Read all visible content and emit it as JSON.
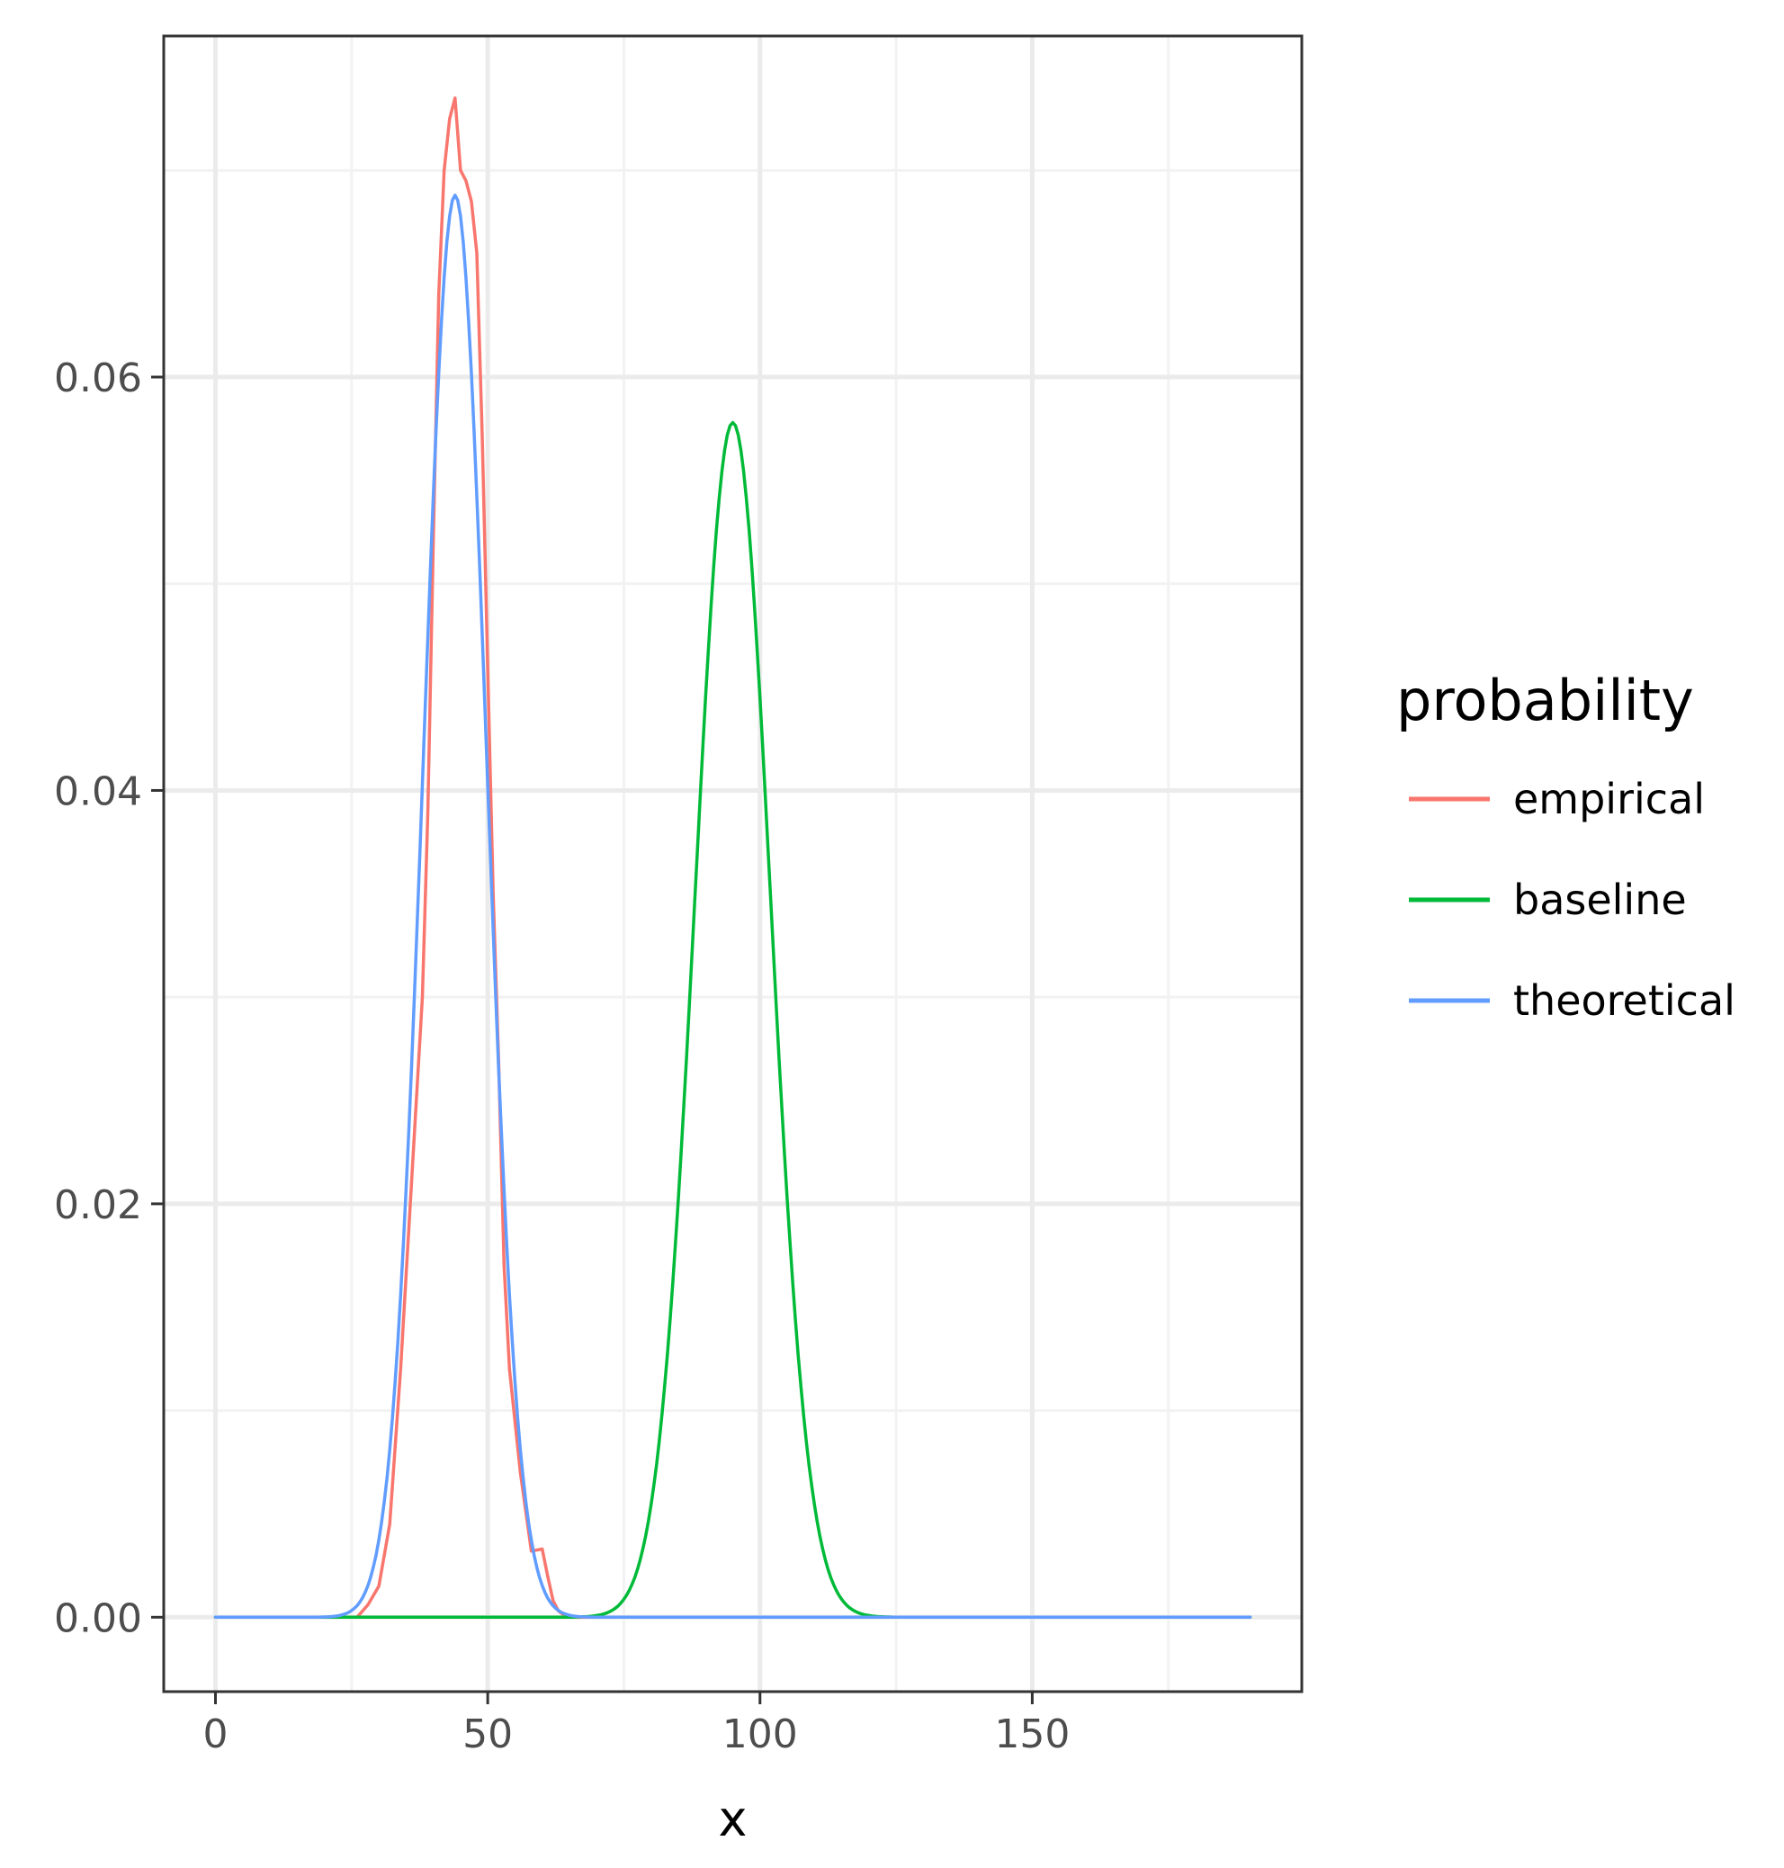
{
  "chart_data": {
    "type": "line",
    "title": "",
    "xlabel": "x",
    "ylabel": "",
    "xlim": [
      -9.5,
      199.5
    ],
    "ylim": [
      -0.0036,
      0.0765
    ],
    "x_ticks": [
      0,
      50,
      100,
      150
    ],
    "x_tick_labels": [
      "0",
      "50",
      "100",
      "150"
    ],
    "y_ticks": [
      0,
      0.02,
      0.04,
      0.06
    ],
    "y_tick_labels": [
      "0.00",
      "0.02",
      "0.04",
      "0.06"
    ],
    "x_minor_ticks": [
      25,
      75,
      125,
      175
    ],
    "y_minor_ticks": [
      0.01,
      0.03,
      0.05,
      0.07
    ],
    "grid": true,
    "legend": {
      "title": "probability",
      "position": "right"
    },
    "series": [
      {
        "name": "empirical",
        "color": "#F8766D",
        "x": [
          0,
          20,
          26,
          28,
          30,
          32,
          34,
          36,
          38,
          39,
          40,
          41,
          42,
          43,
          44,
          45,
          46,
          47,
          48,
          49,
          50,
          51,
          52,
          53,
          54,
          56,
          58,
          60,
          61,
          62,
          63,
          64,
          66,
          70,
          100,
          150,
          190
        ],
        "y": [
          0,
          0,
          0,
          0.0006,
          0.0015,
          0.0045,
          0.012,
          0.021,
          0.03,
          0.039,
          0.052,
          0.064,
          0.07,
          0.0725,
          0.0735,
          0.07,
          0.0695,
          0.0685,
          0.066,
          0.057,
          0.046,
          0.035,
          0.027,
          0.017,
          0.012,
          0.007,
          0.0032,
          0.0033,
          0.002,
          0.0008,
          0.0003,
          0.0001,
          0,
          0,
          0,
          0,
          0
        ]
      },
      {
        "name": "baseline",
        "color": "#00BA38",
        "gauss": {
          "mu": 95,
          "sigma": 6.9,
          "peak": 0.0578,
          "from": 0,
          "to": 190
        }
      },
      {
        "name": "theoretical",
        "color": "#619CFF",
        "gauss": {
          "mu": 44,
          "sigma": 5.8,
          "peak": 0.0688,
          "from": 0,
          "to": 190
        }
      }
    ]
  }
}
